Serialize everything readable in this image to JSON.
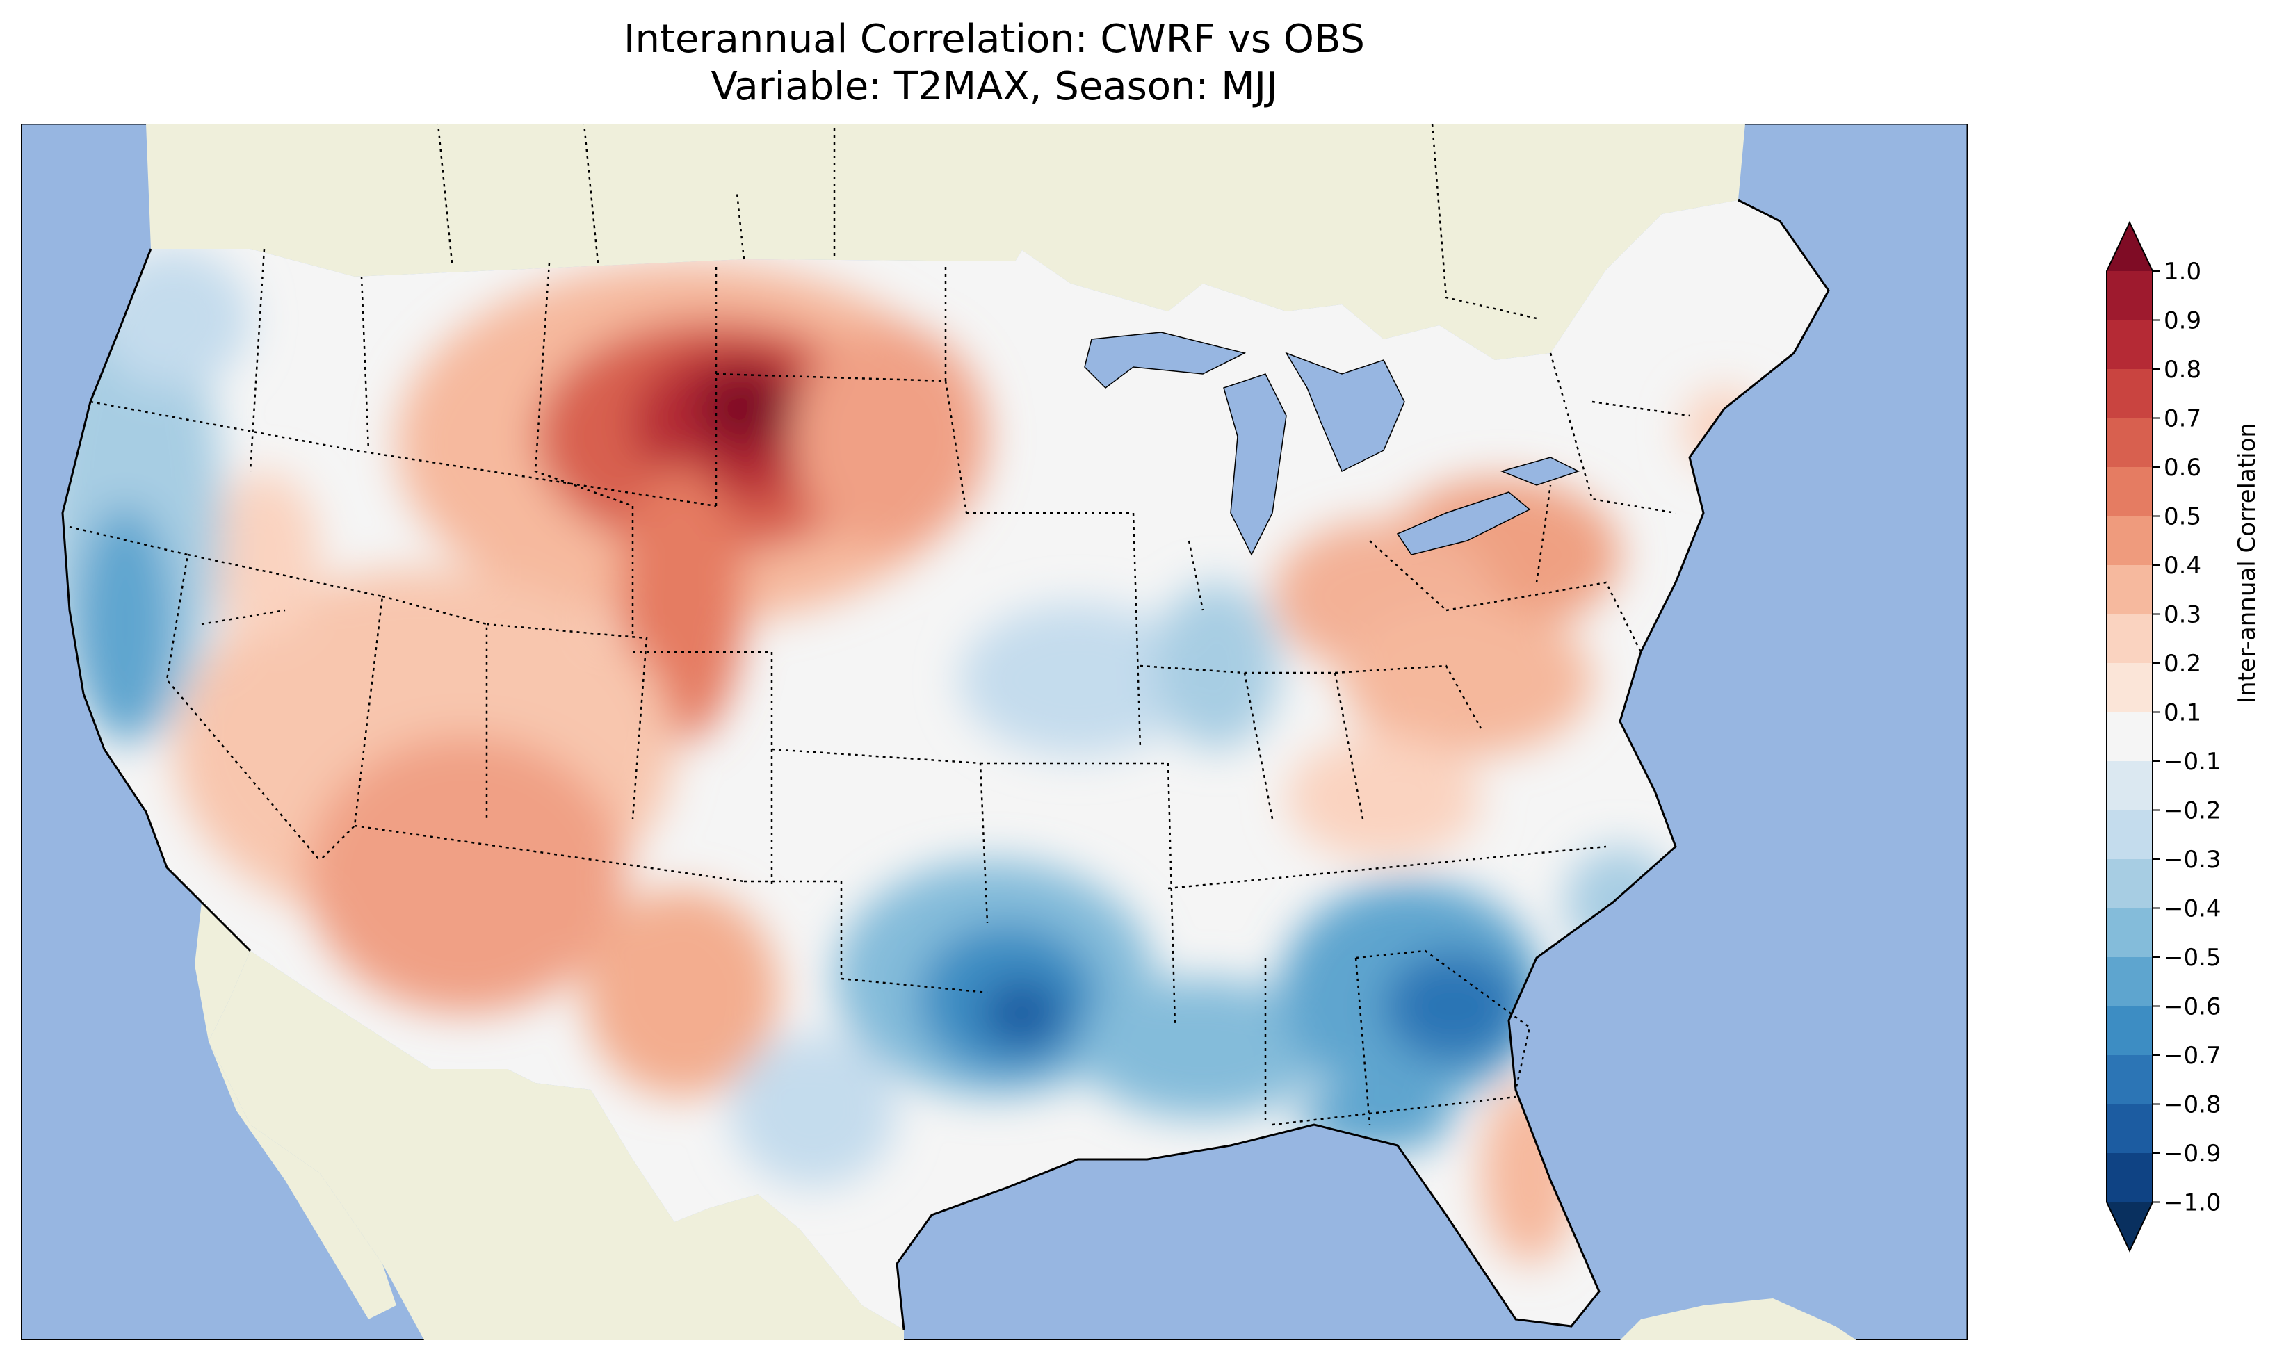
{
  "title": "Interannual Correlation: CWRF vs OBS",
  "subtitle": "Variable: T2MAX, Season: MJJ",
  "colorbar": {
    "label": "Inter-annual Correlation",
    "extend": "both",
    "ticks": [
      "1.0",
      "0.9",
      "0.8",
      "0.7",
      "0.6",
      "0.5",
      "0.4",
      "0.3",
      "0.2",
      "0.1",
      "−0.1",
      "−0.2",
      "−0.3",
      "−0.4",
      "−0.5",
      "−0.6",
      "−0.7",
      "−0.8",
      "−0.9",
      "−1.0"
    ],
    "colors_top_to_bottom": [
      "#7f0c25",
      "#9e1a2e",
      "#b52a35",
      "#c94440",
      "#d8604f",
      "#e57c62",
      "#ef9b7d",
      "#f6b99e",
      "#fad3c0",
      "#fbe5d8",
      "#f5f5f5",
      "#dbe8f1",
      "#c4dced",
      "#a7cde3",
      "#84bcda",
      "#5ea5cf",
      "#3d8dc3",
      "#2c75b5",
      "#1c5ca1",
      "#0f4384",
      "#09305f"
    ],
    "cmap": "RdBu_r"
  },
  "map": {
    "region": "Contiguous United States",
    "ocean_color": "#97b6e1",
    "land_color": "#efefdb",
    "lake_color": "#97b6e1",
    "field_description_hotspots": [
      {
        "area": "Montana/Wyoming/South Dakota",
        "value": 0.85
      },
      {
        "area": "Colorado/Wyoming",
        "value": 0.6
      },
      {
        "area": "Pennsylvania/Ohio",
        "value": 0.45
      },
      {
        "area": "Arizona/New Mexico",
        "value": 0.4
      },
      {
        "area": "Pacific coast California/Oregon",
        "value": -0.5
      },
      {
        "area": "East Texas/Louisiana",
        "value": -0.7
      },
      {
        "area": "Georgia/Alabama",
        "value": -0.7
      },
      {
        "area": "Iowa/Illinois",
        "value": -0.3
      }
    ]
  }
}
